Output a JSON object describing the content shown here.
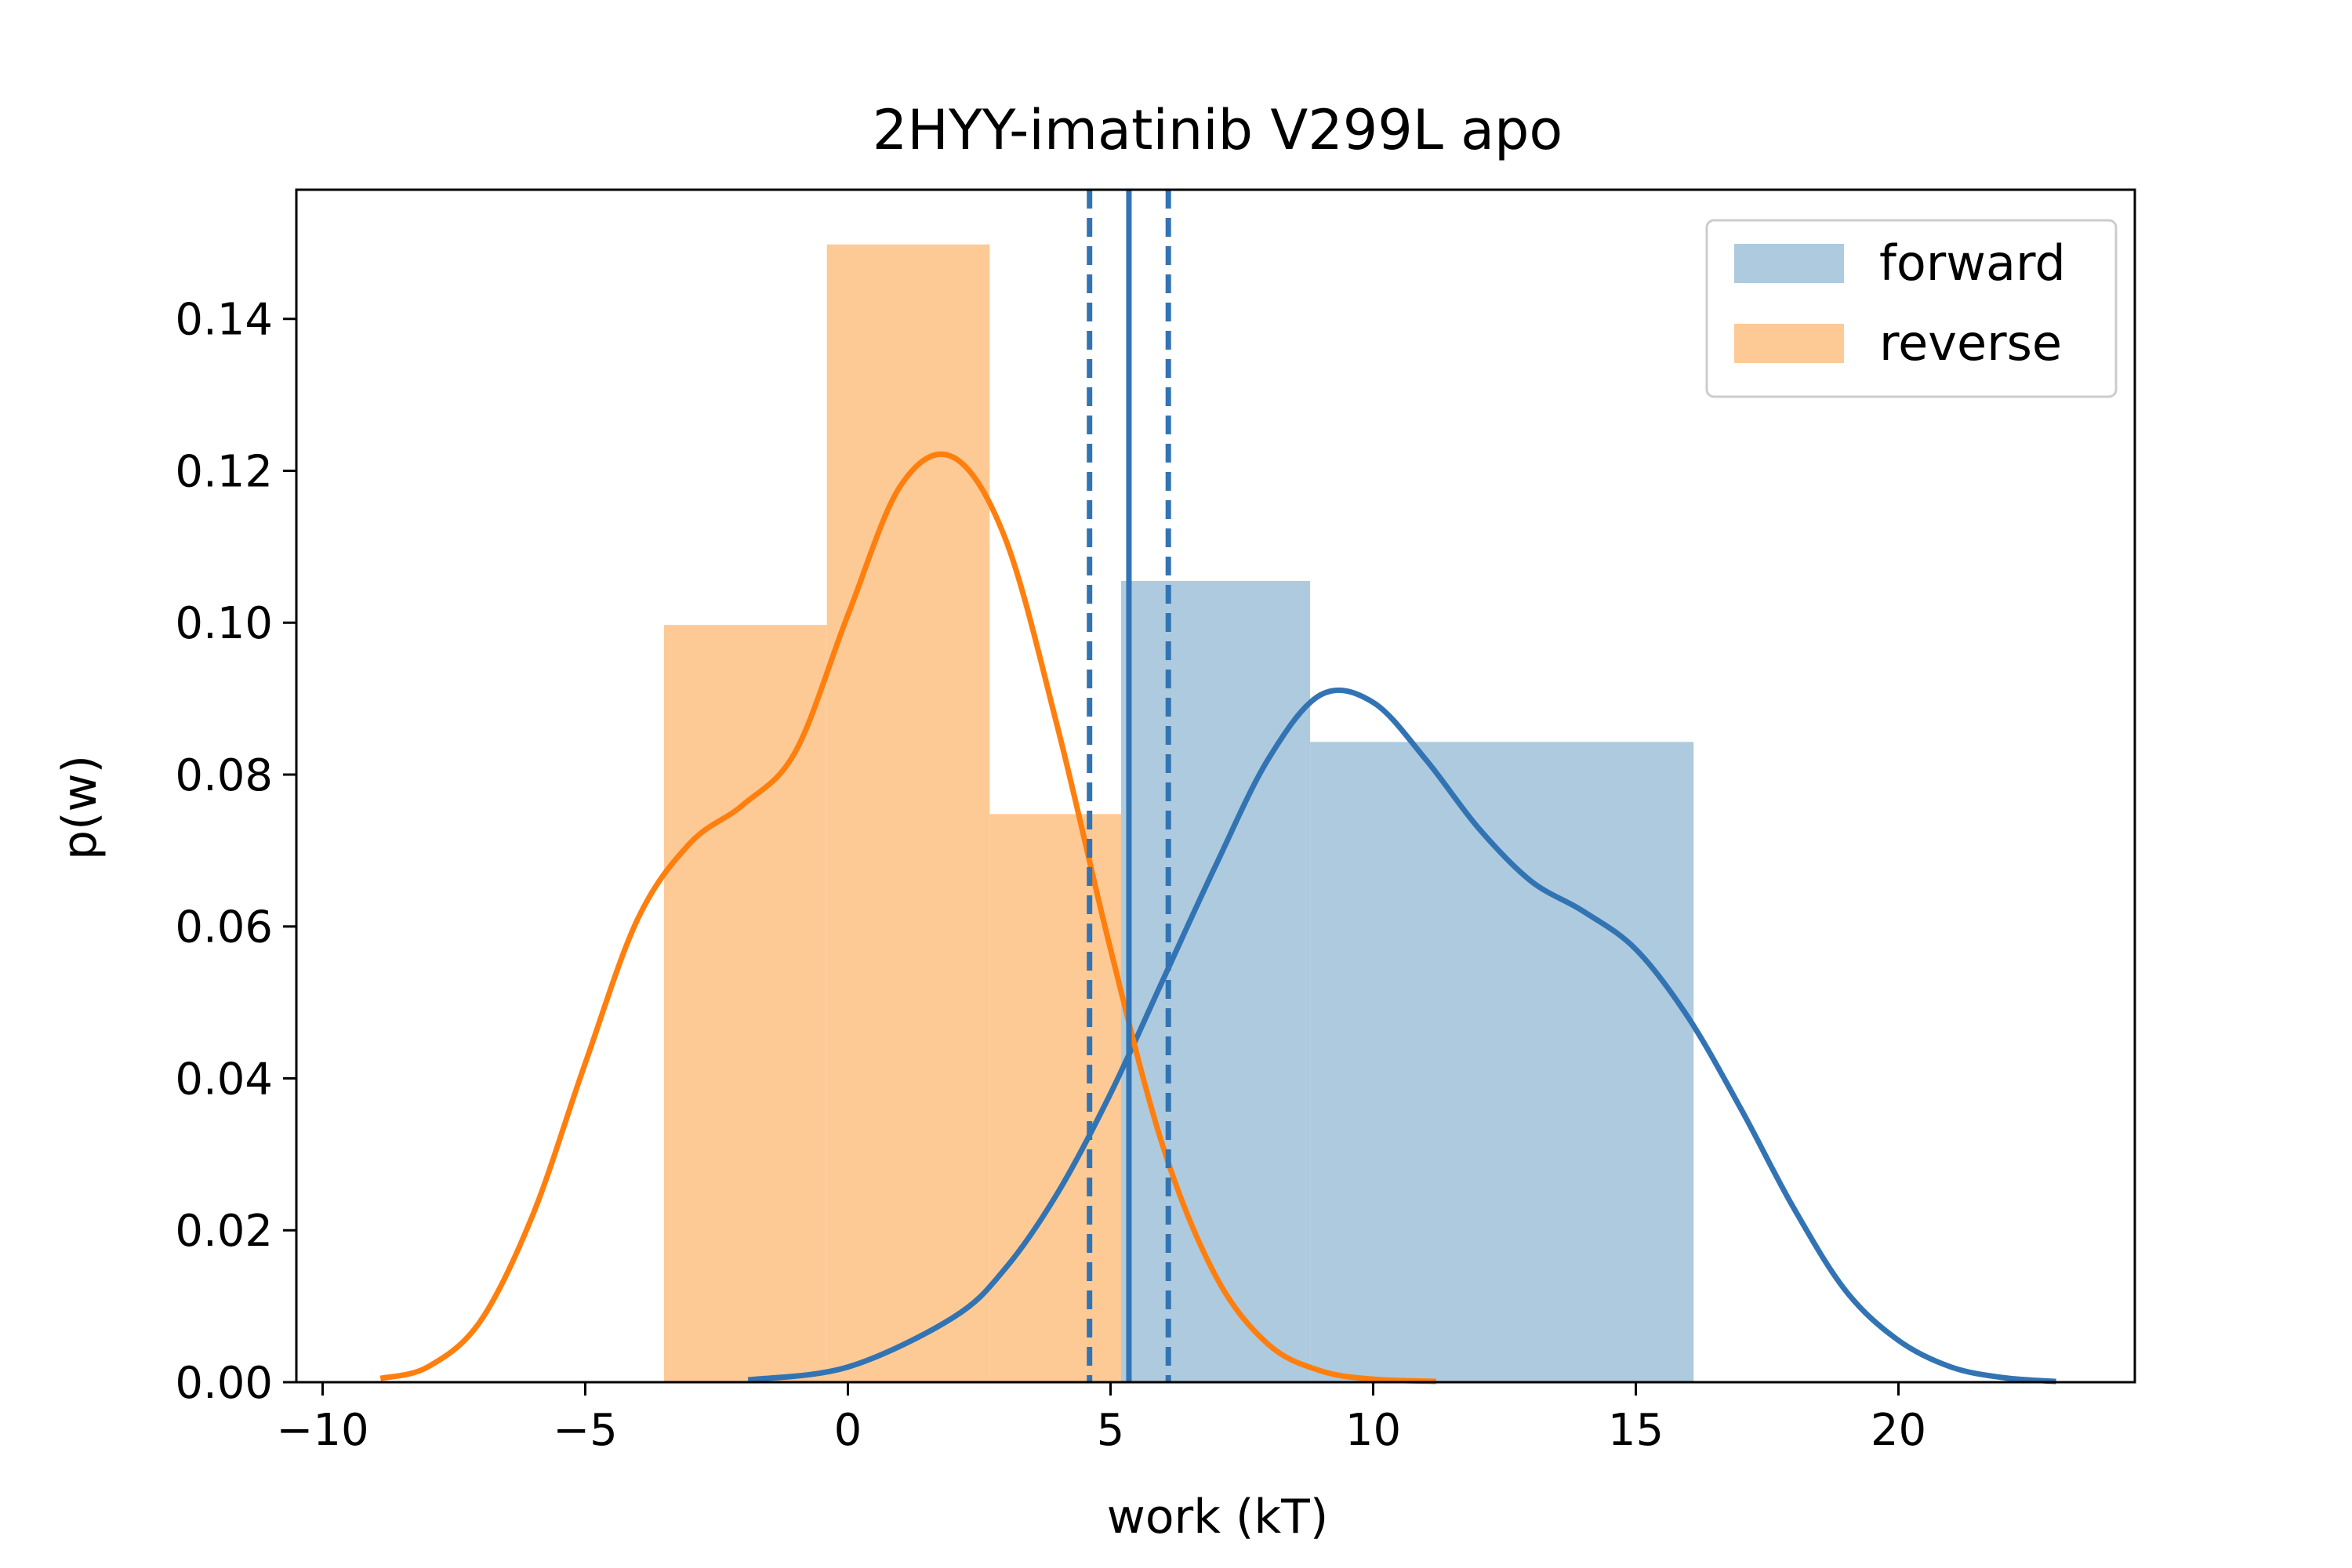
{
  "chart_data": {
    "type": "histogram+kde",
    "title": "2HYY-imatinib V299L apo",
    "xlabel": "work (kT)",
    "ylabel": "p(w)",
    "xlim": [
      -10.5,
      24.5
    ],
    "ylim": [
      0,
      0.157
    ],
    "xticks": [
      -10,
      -5,
      0,
      5,
      10,
      15,
      20
    ],
    "xtick_labels": [
      "−10",
      "−5",
      "0",
      "5",
      "10",
      "15",
      "20"
    ],
    "yticks": [
      0,
      0.02,
      0.04,
      0.06,
      0.08,
      0.1,
      0.12,
      0.14
    ],
    "ytick_labels": [
      "0.00",
      "0.02",
      "0.04",
      "0.06",
      "0.08",
      "0.10",
      "0.12",
      "0.14"
    ],
    "legend_position": "top-right",
    "histograms": [
      {
        "name": "forward",
        "color": "#aecadf",
        "bins": [
          {
            "x0": 5.2,
            "x1": 8.8,
            "height": 0.1055
          },
          {
            "x0": 8.8,
            "x1": 16.1,
            "height": 0.0843
          }
        ]
      },
      {
        "name": "reverse",
        "color": "#fdca96",
        "bins": [
          {
            "x0": -3.5,
            "x1": -0.4,
            "height": 0.0997
          },
          {
            "x0": -0.4,
            "x1": 2.7,
            "height": 0.1498
          },
          {
            "x0": 2.7,
            "x1": 5.8,
            "height": 0.0748
          }
        ]
      }
    ],
    "kde": [
      {
        "series": "forward",
        "color": "#3274b3",
        "x": [
          -1.9,
          0,
          2,
          3,
          4,
          5,
          6,
          7,
          8,
          9,
          10,
          11,
          12,
          13,
          14,
          15,
          16,
          17,
          18,
          19,
          20,
          21,
          22,
          23
        ],
        "y": [
          0.0003,
          0.002,
          0.0085,
          0.015,
          0.025,
          0.038,
          0.053,
          0.068,
          0.082,
          0.0905,
          0.0895,
          0.082,
          0.073,
          0.066,
          0.062,
          0.057,
          0.048,
          0.036,
          0.023,
          0.012,
          0.0055,
          0.002,
          0.0006,
          0.0001
        ]
      },
      {
        "series": "reverse",
        "color": "#ff7f0e",
        "x": [
          -8.9,
          -8,
          -7,
          -6,
          -5,
          -4,
          -3,
          -2,
          -1,
          0,
          1,
          2,
          3,
          4,
          5,
          6,
          7,
          8,
          9,
          10,
          11.2
        ],
        "y": [
          0.0005,
          0.002,
          0.008,
          0.022,
          0.042,
          0.061,
          0.071,
          0.076,
          0.083,
          0.101,
          0.118,
          0.1218,
          0.111,
          0.086,
          0.057,
          0.031,
          0.014,
          0.005,
          0.0015,
          0.0004,
          0.0001
        ]
      }
    ],
    "vlines": [
      {
        "x": 4.6,
        "style": "dashed",
        "color": "#3274b3"
      },
      {
        "x": 5.35,
        "style": "solid",
        "color": "#3274b3"
      },
      {
        "x": 6.1,
        "style": "dashed",
        "color": "#3274b3"
      }
    ]
  }
}
